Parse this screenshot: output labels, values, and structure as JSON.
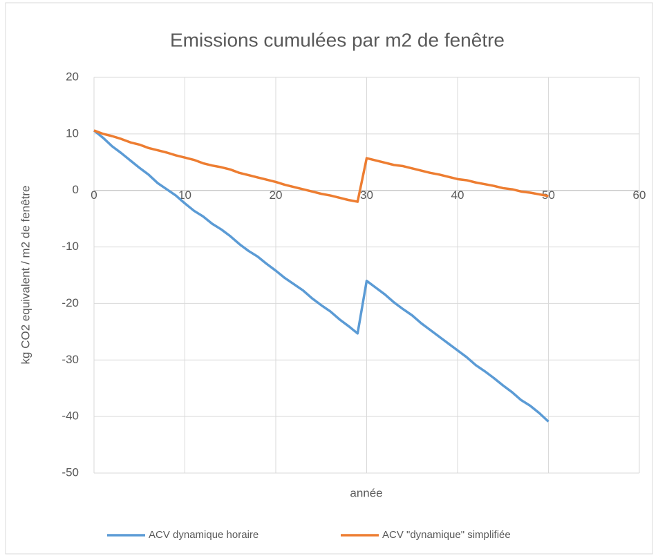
{
  "chart_data": {
    "type": "line",
    "title": "Emissions cumulées par m2 de fenêtre",
    "xlabel": "année",
    "ylabel": "kg CO2 equivalent / m2 de fenêtre",
    "x": [
      0,
      1,
      2,
      3,
      4,
      5,
      6,
      7,
      8,
      9,
      10,
      11,
      12,
      13,
      14,
      15,
      16,
      17,
      18,
      19,
      20,
      21,
      22,
      23,
      24,
      25,
      26,
      27,
      28,
      29,
      30,
      31,
      32,
      33,
      34,
      35,
      36,
      37,
      38,
      39,
      40,
      41,
      42,
      43,
      44,
      45,
      46,
      47,
      48,
      49,
      50
    ],
    "series": [
      {
        "name": "ACV dynamique horaire",
        "color": "#5b9bd5",
        "values": [
          10.6,
          9.3,
          7.8,
          6.6,
          5.3,
          4.0,
          2.8,
          1.3,
          0.2,
          -0.9,
          -2.3,
          -3.6,
          -4.6,
          -5.9,
          -6.9,
          -8.1,
          -9.5,
          -10.7,
          -11.7,
          -13.0,
          -14.2,
          -15.5,
          -16.6,
          -17.7,
          -19.1,
          -20.3,
          -21.4,
          -22.8,
          -24.0,
          -25.3,
          -16.0,
          -17.2,
          -18.4,
          -19.8,
          -21.0,
          -22.1,
          -23.5,
          -24.7,
          -25.9,
          -27.1,
          -28.3,
          -29.5,
          -30.9,
          -32.0,
          -33.2,
          -34.5,
          -35.7,
          -37.1,
          -38.1,
          -39.4,
          -40.9
        ]
      },
      {
        "name": "ACV \"dynamique\" simplifiée",
        "color": "#ed7d31",
        "values": [
          10.6,
          10.0,
          9.6,
          9.1,
          8.5,
          8.1,
          7.5,
          7.1,
          6.7,
          6.2,
          5.8,
          5.4,
          4.8,
          4.4,
          4.1,
          3.7,
          3.1,
          2.7,
          2.3,
          1.9,
          1.5,
          1.0,
          0.6,
          0.2,
          -0.2,
          -0.6,
          -0.9,
          -1.3,
          -1.7,
          -2.0,
          5.7,
          5.3,
          4.9,
          4.5,
          4.3,
          3.9,
          3.5,
          3.1,
          2.8,
          2.4,
          2.0,
          1.8,
          1.4,
          1.1,
          0.8,
          0.4,
          0.2,
          -0.2,
          -0.4,
          -0.7,
          -1.0
        ]
      }
    ],
    "xlim": [
      0,
      60
    ],
    "xticks": [
      0,
      10,
      20,
      30,
      40,
      50,
      60
    ],
    "ylim": [
      -50,
      20
    ],
    "yticks": [
      -50,
      -40,
      -30,
      -20,
      -10,
      0,
      10,
      20
    ],
    "grid": true,
    "legend": "bottom"
  }
}
